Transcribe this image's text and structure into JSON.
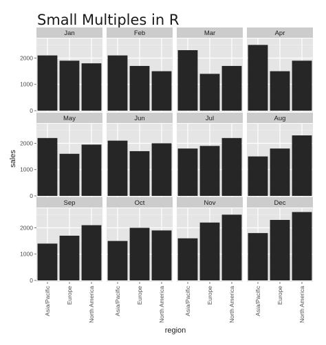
{
  "chart_data": {
    "type": "bar",
    "title": "Small Multiples in R",
    "xlabel": "region",
    "ylabel": "sales",
    "categories": [
      "Asia/Pacific",
      "Europe",
      "North America"
    ],
    "ylim": [
      0,
      2600
    ],
    "yticks": [
      0,
      1000,
      2000
    ],
    "grid": true,
    "facet_layout": {
      "rows": 3,
      "cols": 4
    },
    "colors": {
      "bar": "#262626",
      "panel_bg": "#e5e5e5",
      "strip_bg": "#cccccc",
      "grid_major": "#ffffff",
      "grid_minor": "#f0f0f0"
    },
    "panels": [
      {
        "name": "Jan",
        "values": [
          2100,
          1900,
          1800
        ]
      },
      {
        "name": "Feb",
        "values": [
          2100,
          1700,
          1500
        ]
      },
      {
        "name": "Mar",
        "values": [
          2300,
          1400,
          1700
        ]
      },
      {
        "name": "Apr",
        "values": [
          2500,
          1500,
          1900
        ]
      },
      {
        "name": "May",
        "values": [
          2200,
          1600,
          1950
        ]
      },
      {
        "name": "Jun",
        "values": [
          2100,
          1700,
          2000
        ]
      },
      {
        "name": "Jul",
        "values": [
          1800,
          1900,
          2200
        ]
      },
      {
        "name": "Aug",
        "values": [
          1500,
          1800,
          2300
        ]
      },
      {
        "name": "Sep",
        "values": [
          1400,
          1700,
          2100
        ]
      },
      {
        "name": "Oct",
        "values": [
          1500,
          2000,
          1900
        ]
      },
      {
        "name": "Nov",
        "values": [
          1600,
          2200,
          2500
        ]
      },
      {
        "name": "Dec",
        "values": [
          1800,
          2300,
          2600
        ]
      }
    ]
  }
}
